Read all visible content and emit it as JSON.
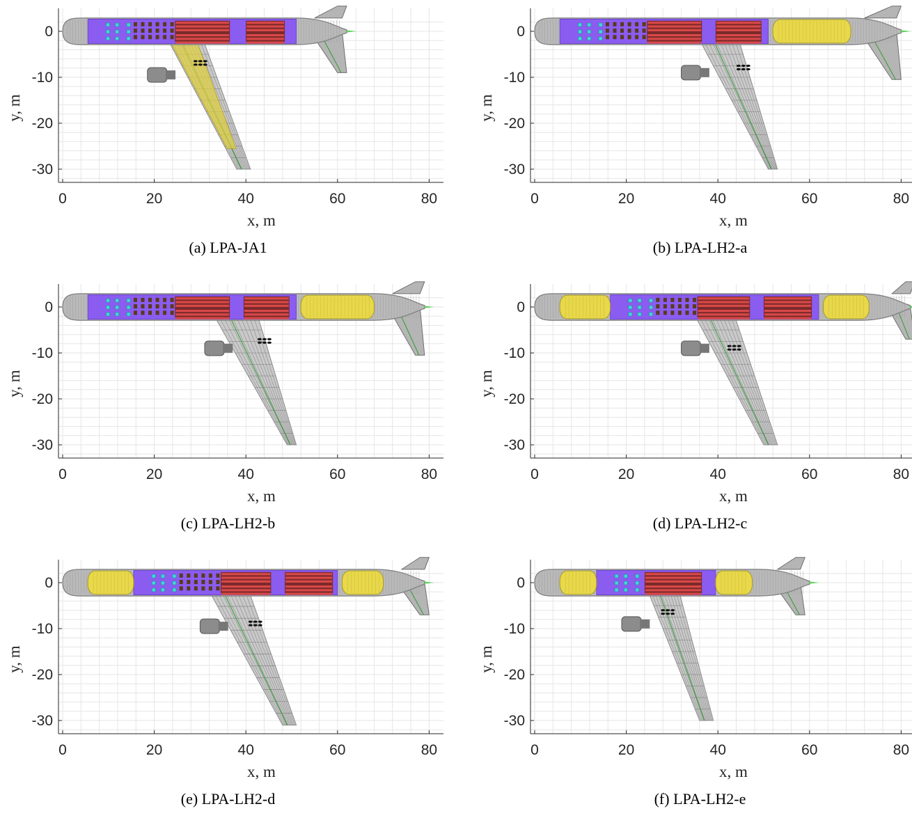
{
  "axes": {
    "xlabel": "x, m",
    "ylabel": "y, m",
    "xlim": [
      0,
      82
    ],
    "ylim": [
      -33,
      3
    ],
    "xticks": [
      0,
      20,
      40,
      60,
      80
    ],
    "yticks": [
      0,
      -10,
      -20,
      -30
    ],
    "grid": true
  },
  "colors": {
    "fuselage": "#a6a6a6",
    "cabin": "#8a5cf0",
    "seats": "#d94848",
    "service_units": "#40d8d8",
    "lh2_tank": "#e8d84a",
    "wing_fuel": "#e0cf3a",
    "mesh": "#7a7a7a",
    "spar": "#2e9e2e",
    "nose_tip": "#5fd35f",
    "engine": "#8c8c8c"
  },
  "panels": [
    {
      "caption": "(a) LPA-JA1",
      "fuselage": [
        0,
        62
      ],
      "cabin": [
        [
          5.5,
          51
        ]
      ],
      "seat_blocks": [
        [
          24.5,
          36.5
        ],
        [
          40,
          48.5
        ]
      ],
      "service_units": [
        9.5,
        11.5,
        14
      ],
      "lh2_tanks": [],
      "wing": {
        "root_le": 22,
        "root_te": 30,
        "tip_le": 38,
        "tip_te": 41,
        "tip_y": -30,
        "fuel_in_wing": true
      },
      "htail": {
        "root_le": 54,
        "root_te": 61,
        "tip_le": 60,
        "tip_te": 62,
        "tip_y": -9
      },
      "engine": {
        "x": 19.5,
        "y": -9.5
      },
      "struts": {
        "x": 29,
        "y": -6.5
      }
    },
    {
      "caption": "(b) LPA-LH2-a",
      "fuselage": [
        0,
        80
      ],
      "cabin": [
        [
          5.5,
          51
        ]
      ],
      "seat_blocks": [
        [
          24.5,
          36.5
        ],
        [
          39.5,
          49.5
        ]
      ],
      "service_units": [
        9.5,
        11.5,
        14
      ],
      "lh2_tanks": [
        [
          52,
          69
        ]
      ],
      "wing": {
        "root_le": 35,
        "root_te": 44,
        "tip_le": 51,
        "tip_te": 53,
        "tip_y": -30,
        "fuel_in_wing": false
      },
      "htail": {
        "root_le": 71,
        "root_te": 79,
        "tip_le": 78,
        "tip_te": 80,
        "tip_y": -10.5
      },
      "engine": {
        "x": 33,
        "y": -9
      },
      "struts": {
        "x": 44.5,
        "y": -7.5
      }
    },
    {
      "caption": "(c) LPA-LH2-b",
      "fuselage": [
        0,
        79
      ],
      "cabin": [
        [
          5.5,
          51
        ]
      ],
      "seat_blocks": [
        [
          24.5,
          36.5
        ],
        [
          39.5,
          49.5
        ]
      ],
      "service_units": [
        9.5,
        11.5,
        14
      ],
      "lh2_tanks": [
        [
          52,
          68
        ]
      ],
      "wing": {
        "root_le": 32,
        "root_te": 42,
        "tip_le": 49,
        "tip_te": 51,
        "tip_y": -30,
        "fuel_in_wing": false
      },
      "htail": {
        "root_le": 71,
        "root_te": 78,
        "tip_le": 77,
        "tip_te": 79,
        "tip_y": -10.5
      },
      "engine": {
        "x": 32,
        "y": -9
      },
      "struts": {
        "x": 43,
        "y": -7
      }
    },
    {
      "caption": "(d) LPA-LH2-c",
      "fuselage": [
        0,
        82
      ],
      "cabin": [
        [
          16.5,
          62
        ]
      ],
      "seat_blocks": [
        [
          35.5,
          47
        ],
        [
          50,
          60.5
        ]
      ],
      "service_units": [
        20.5,
        22.5,
        25
      ],
      "lh2_tanks": [
        [
          5.5,
          16.5
        ],
        [
          63,
          73
        ]
      ],
      "wing": {
        "root_le": 34,
        "root_te": 43,
        "tip_le": 50,
        "tip_te": 53,
        "tip_y": -30,
        "fuel_in_wing": false
      },
      "htail": {
        "root_le": 77,
        "root_te": 82,
        "tip_le": 81,
        "tip_te": 83,
        "tip_y": -7
      },
      "engine": {
        "x": 33,
        "y": -9
      },
      "struts": {
        "x": 42.5,
        "y": -8.5
      }
    },
    {
      "caption": "(e) LPA-LH2-d",
      "fuselage": [
        0,
        79
      ],
      "cabin": [
        [
          15.5,
          60
        ]
      ],
      "seat_blocks": [
        [
          34.5,
          45.5
        ],
        [
          48.5,
          59
        ]
      ],
      "service_units": [
        19.5,
        21.5,
        24
      ],
      "lh2_tanks": [
        [
          5.5,
          15.5
        ],
        [
          61,
          70
        ]
      ],
      "wing": {
        "root_le": 31,
        "root_te": 40,
        "tip_le": 48,
        "tip_te": 51,
        "tip_y": -31,
        "fuel_in_wing": false
      },
      "htail": {
        "root_le": 73,
        "root_te": 79,
        "tip_le": 78,
        "tip_te": 80,
        "tip_y": -7
      },
      "engine": {
        "x": 31,
        "y": -9.5
      },
      "struts": {
        "x": 41,
        "y": -8.5
      }
    },
    {
      "caption": "(f) LPA-LH2-e",
      "fuselage": [
        0,
        60
      ],
      "cabin": [
        [
          13.5,
          39.5
        ]
      ],
      "seat_blocks": [
        [
          24,
          36.5
        ]
      ],
      "service_units": [
        17.5,
        19.5,
        22
      ],
      "lh2_tanks": [
        [
          5.5,
          13.5
        ],
        [
          39.5,
          47.5
        ]
      ],
      "wing": {
        "root_le": 24,
        "root_te": 31,
        "tip_le": 36,
        "tip_te": 39,
        "tip_y": -30,
        "fuel_in_wing": false
      },
      "htail": {
        "root_le": 52,
        "root_te": 58,
        "tip_le": 57,
        "tip_te": 59,
        "tip_y": -7
      },
      "engine": {
        "x": 20,
        "y": -9
      },
      "struts": {
        "x": 28,
        "y": -6
      }
    }
  ]
}
